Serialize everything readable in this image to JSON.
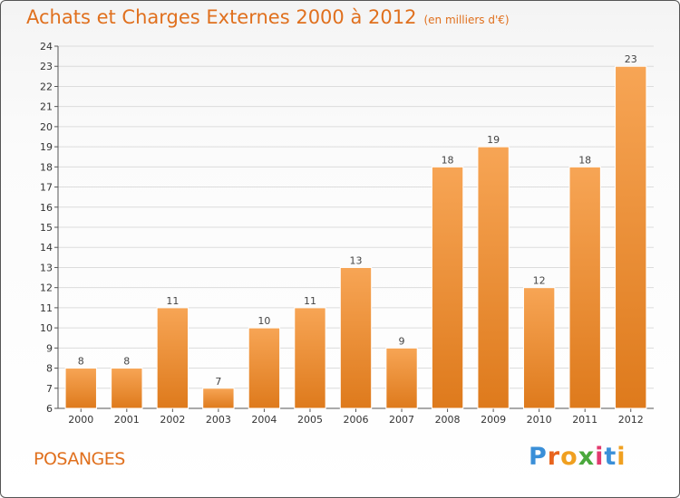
{
  "header": {
    "title": "Achats et Charges Externes 2000 à 2012",
    "subtitle": "(en milliers d'€)"
  },
  "footer": {
    "commune": "POSANGES",
    "logo": "Proxiti"
  },
  "colors": {
    "accent": "#e0701e",
    "bar_top": "#f7a555",
    "bar_bottom": "#de7a1c"
  },
  "chart_data": {
    "type": "bar",
    "title": "Achats et Charges Externes 2000 à 2012",
    "subtitle": "(en milliers d'€)",
    "xlabel": "",
    "ylabel": "",
    "categories": [
      "2000",
      "2001",
      "2002",
      "2003",
      "2004",
      "2005",
      "2006",
      "2007",
      "2008",
      "2009",
      "2010",
      "2011",
      "2012"
    ],
    "values": [
      8,
      8,
      11,
      7,
      10,
      11,
      13,
      9,
      18,
      19,
      12,
      18,
      23
    ],
    "ylim": [
      6,
      24
    ],
    "yticks": [
      6,
      7,
      8,
      9,
      10,
      11,
      12,
      13,
      14,
      15,
      16,
      17,
      18,
      19,
      20,
      21,
      22,
      23,
      24
    ],
    "grid": true
  }
}
